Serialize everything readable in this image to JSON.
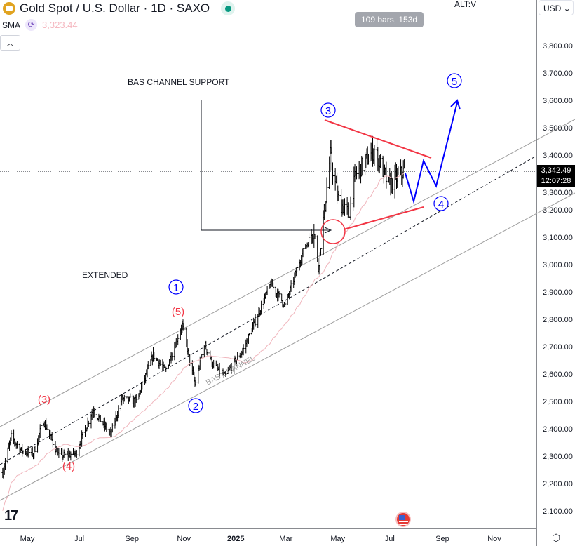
{
  "header": {
    "symbol": "Gold Spot / U.S. Dollar · 1D · SAXO",
    "indicator": "SMA",
    "indicator_value": "3,323.44",
    "collapse_icon": "chevron-up-icon"
  },
  "tooltip": "109 bars, 153d",
  "alt_label": "ALT:V",
  "currency": "USD ⌄",
  "last_price": "3,342.49",
  "countdown": "12:07:28",
  "colors": {
    "bars": "#000000",
    "sma": "#f0b6bd",
    "channel": "#9e9e9e",
    "red": "#f23645",
    "blue": "#0000ff"
  },
  "chart_data": {
    "type": "ohlc",
    "title": "Gold Spot / U.S. Dollar · 1D · SAXO",
    "ylim": [
      2050,
      3880
    ],
    "yticks": [
      "3,800.00",
      "3,700.00",
      "3,600.00",
      "3,500.00",
      "3,400.00",
      "3,300.00",
      "3,200.00",
      "3,100.00",
      "3,000.00",
      "2,900.00",
      "2,800.00",
      "2,700.00",
      "2,600.00",
      "2,500.00",
      "2,400.00",
      "2,300.00",
      "2,200.00",
      "2,100.00"
    ],
    "ytick_values": [
      3800,
      3700,
      3600,
      3500,
      3400,
      3300,
      3200,
      3100,
      3000,
      2900,
      2800,
      2700,
      2600,
      2500,
      2400,
      2300,
      2200,
      2100
    ],
    "xticks": [
      "May",
      "Jul",
      "Sep",
      "Nov",
      "2025",
      "Mar",
      "May",
      "Jul",
      "Sep",
      "Nov"
    ],
    "xtick_dates": [
      "2024-05-01",
      "2024-07-01",
      "2024-09-01",
      "2024-11-01",
      "2025-01-01",
      "2025-03-01",
      "2025-05-01",
      "2025-07-01",
      "2025-09-01",
      "2025-11-01"
    ],
    "price_path": [
      [
        "2024-04-02",
        2240
      ],
      [
        "2024-04-12",
        2370
      ],
      [
        "2024-04-24",
        2320
      ],
      [
        "2024-05-08",
        2310
      ],
      [
        "2024-05-20",
        2430
      ],
      [
        "2024-06-07",
        2300
      ],
      [
        "2024-06-27",
        2310
      ],
      [
        "2024-07-17",
        2470
      ],
      [
        "2024-08-07",
        2380
      ],
      [
        "2024-08-20",
        2510
      ],
      [
        "2024-09-06",
        2500
      ],
      [
        "2024-09-26",
        2670
      ],
      [
        "2024-10-10",
        2610
      ],
      [
        "2024-10-30",
        2780
      ],
      [
        "2024-11-14",
        2560
      ],
      [
        "2024-11-25",
        2710
      ],
      [
        "2024-12-06",
        2630
      ],
      [
        "2024-12-19",
        2590
      ],
      [
        "2025-01-10",
        2690
      ],
      [
        "2025-02-11",
        2930
      ],
      [
        "2025-02-28",
        2850
      ],
      [
        "2025-03-20",
        3040
      ],
      [
        "2025-04-03",
        3130
      ],
      [
        "2025-04-08",
        2980
      ],
      [
        "2025-04-22",
        3400
      ],
      [
        "2025-05-01",
        3240
      ],
      [
        "2025-05-14",
        3180
      ],
      [
        "2025-05-22",
        3330
      ],
      [
        "2025-06-13",
        3420
      ],
      [
        "2025-06-30",
        3290
      ],
      [
        "2025-07-18",
        3342
      ]
    ],
    "sma_period": 50,
    "annotations": {
      "channel_support_label": "BAS CHANNEL SUPPORT",
      "channel_label": "BAS CHANNEL",
      "extended_label": "EXTENDED",
      "wave_blue": [
        "1",
        "2",
        "3",
        "4",
        "5"
      ],
      "wave_red": [
        "(3)",
        "(4)",
        "(5)"
      ]
    }
  }
}
